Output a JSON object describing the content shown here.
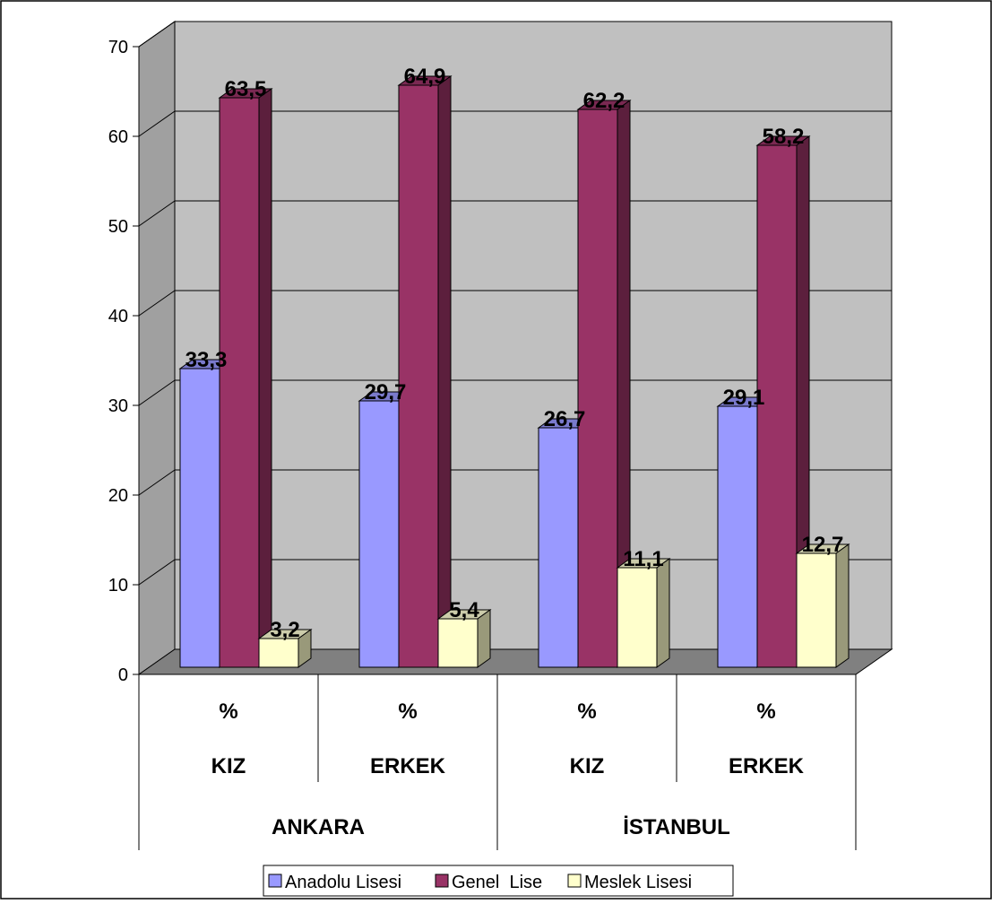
{
  "chart_data": {
    "type": "bar",
    "categories": [
      {
        "pct": "%",
        "gender": "KIZ",
        "city": "ANKARA"
      },
      {
        "pct": "%",
        "gender": "ERKEK",
        "city": "ANKARA"
      },
      {
        "pct": "%",
        "gender": "KIZ",
        "city": "İSTANBUL"
      },
      {
        "pct": "%",
        "gender": "ERKEK",
        "city": "İSTANBUL"
      }
    ],
    "cities": [
      "ANKARA",
      "İSTANBUL"
    ],
    "series": [
      {
        "name": "Anadolu Lisesi",
        "values": [
          33.3,
          29.7,
          26.7,
          29.1
        ],
        "labels": [
          "33,3",
          "29,7",
          "26,7",
          "29,1"
        ]
      },
      {
        "name": "Genel  Lise",
        "values": [
          63.5,
          64.9,
          62.2,
          58.2
        ],
        "labels": [
          "63,5",
          "64,9",
          "62,2",
          "58,2"
        ]
      },
      {
        "name": "Meslek Lisesi",
        "values": [
          3.2,
          5.4,
          11.1,
          12.7
        ],
        "labels": [
          "3,2",
          "5,4",
          "11,1",
          "12,7"
        ]
      }
    ],
    "ylim": [
      0,
      70
    ],
    "yticks": [
      0,
      10,
      20,
      30,
      40,
      50,
      60,
      70
    ],
    "grid": true,
    "legend": "bottom",
    "colors": {
      "series": [
        "#9999ff",
        "#993366",
        "#ffffcc"
      ],
      "series_side": [
        "#5c5c99",
        "#5c1f3d",
        "#99997a"
      ],
      "series_top": [
        "#7a7acc",
        "#7a2952",
        "#ccccaa"
      ],
      "wall": "#c0c0c0",
      "floor": "#808080",
      "gridline": "#000000"
    }
  }
}
